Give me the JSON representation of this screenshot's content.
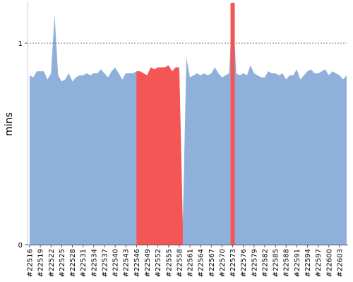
{
  "chart_data": {
    "type": "area",
    "ylabel": "mins",
    "xlabel": "",
    "title": "",
    "ylim": [
      0,
      1.2
    ],
    "y_ticks": [
      {
        "value": 0,
        "label": "0"
      },
      {
        "value": 1,
        "label": "1"
      }
    ],
    "reference_line": {
      "value": 1,
      "style": "dotted"
    },
    "x": [
      "#22516",
      "#22517",
      "#22518",
      "#22519",
      "#22520",
      "#22521",
      "#22522",
      "#22523",
      "#22524",
      "#22525",
      "#22526",
      "#22527",
      "#22528",
      "#22529",
      "#22530",
      "#22531",
      "#22532",
      "#22533",
      "#22534",
      "#22535",
      "#22536",
      "#22537",
      "#22538",
      "#22539",
      "#22540",
      "#22541",
      "#22542",
      "#22543",
      "#22544",
      "#22545",
      "#22546",
      "#22547",
      "#22548",
      "#22549",
      "#22550",
      "#22551",
      "#22552",
      "#22553",
      "#22554",
      "#22555",
      "#22556",
      "#22557",
      "#22558",
      "#22559",
      "#22560",
      "#22561",
      "#22562",
      "#22563",
      "#22564",
      "#22565",
      "#22566",
      "#22567",
      "#22568",
      "#22569",
      "#22570",
      "#22571",
      "#22572",
      "#22573",
      "#22574",
      "#22575",
      "#22576",
      "#22577",
      "#22578",
      "#22579",
      "#22580",
      "#22581",
      "#22582",
      "#22583",
      "#22584",
      "#22585",
      "#22586",
      "#22587",
      "#22588",
      "#22589",
      "#22590",
      "#22591",
      "#22592",
      "#22593",
      "#22594",
      "#22595",
      "#22596",
      "#22597",
      "#22598",
      "#22599",
      "#22600",
      "#22601",
      "#22602",
      "#22603",
      "#22604",
      "#22605"
    ],
    "tick_labels": [
      "#22516",
      "#22519",
      "#22522",
      "#22525",
      "#22528",
      "#22531",
      "#22534",
      "#22537",
      "#22540",
      "#22543",
      "#22546",
      "#22549",
      "#22552",
      "#22555",
      "#22558",
      "#22561",
      "#22564",
      "#22567",
      "#22570",
      "#22573",
      "#22576",
      "#22579",
      "#22582",
      "#22585",
      "#22588",
      "#22591",
      "#22594",
      "#22597",
      "#22600",
      "#22603"
    ],
    "series": [
      {
        "color": "#8fb0da",
        "values": [
          0.84,
          0.83,
          0.86,
          0.86,
          0.86,
          0.82,
          0.85,
          1.14,
          0.84,
          0.81,
          0.82,
          0.85,
          0.81,
          0.83,
          0.84,
          0.84,
          0.85,
          0.84,
          0.85,
          0.85,
          0.87,
          0.85,
          0.83,
          0.86,
          0.88,
          0.85,
          0.82,
          0.85,
          0.85,
          0.85,
          0.86,
          0.86,
          0.85,
          0.84,
          0.88,
          0.87,
          0.88,
          0.88,
          0.88,
          0.89,
          0.86,
          0.88,
          0.88,
          0.1,
          0.93,
          0.83,
          0.84,
          0.85,
          0.84,
          0.85,
          0.84,
          0.85,
          0.88,
          0.85,
          0.83,
          0.84,
          0.85,
          1.2,
          0.85,
          0.84,
          0.85,
          0.84,
          0.89,
          0.85,
          0.84,
          0.83,
          0.83,
          0.86,
          0.85,
          0.85,
          0.84,
          0.85,
          0.82,
          0.84,
          0.84,
          0.87,
          0.82,
          0.84,
          0.86,
          0.87,
          0.85,
          0.85,
          0.86,
          0.87,
          0.84,
          0.86,
          0.85,
          0.84,
          0.82,
          0.84
        ]
      }
    ],
    "highlights": [
      {
        "from": "#22546",
        "to": "#22559",
        "color": "#f45655"
      },
      {
        "from": "#22573",
        "to": "#22573",
        "color": "#f45655"
      }
    ]
  }
}
